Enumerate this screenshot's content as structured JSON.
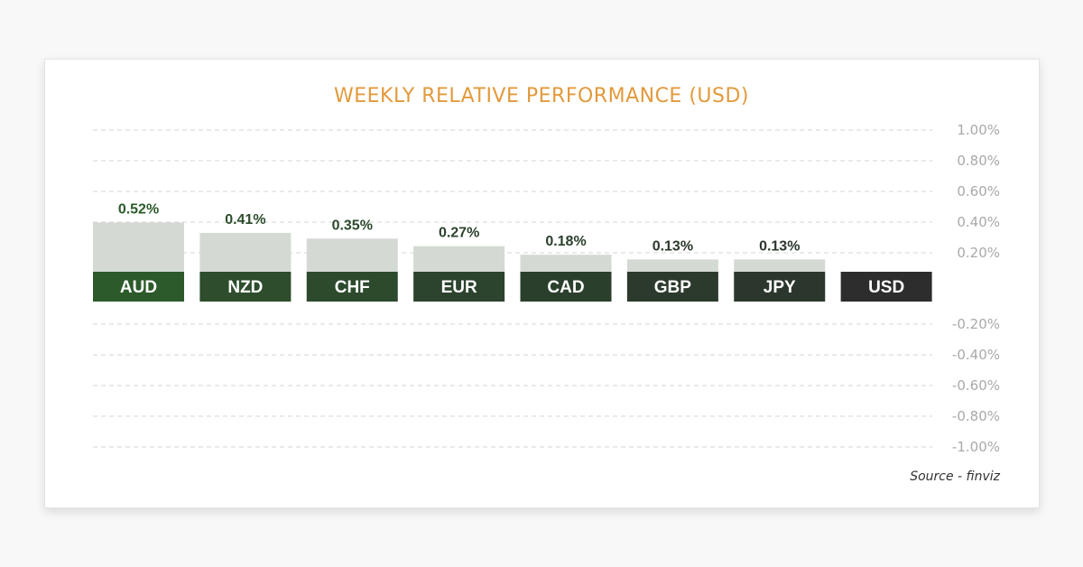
{
  "chart_data": {
    "type": "bar",
    "title": "WEEKLY RELATIVE PERFORMANCE (USD)",
    "categories": [
      "AUD",
      "NZD",
      "CHF",
      "EUR",
      "CAD",
      "GBP",
      "JPY",
      "USD"
    ],
    "values": [
      0.52,
      0.41,
      0.35,
      0.27,
      0.18,
      0.13,
      0.13,
      0.0
    ],
    "value_labels": [
      "0.52%",
      "0.41%",
      "0.35%",
      "0.27%",
      "0.18%",
      "0.13%",
      "0.13%",
      ""
    ],
    "ylim": [
      -1.0,
      1.0
    ],
    "yticks": [
      1.0,
      0.8,
      0.6,
      0.4,
      0.2,
      -0.2,
      -0.4,
      -0.6,
      -0.8,
      -1.0
    ],
    "ytick_labels": [
      "1.00%",
      "0.80%",
      "0.60%",
      "0.40%",
      "0.20%",
      "-0.20%",
      "-0.40%",
      "-0.60%",
      "-0.80%",
      "-1.00%"
    ],
    "grid": true,
    "source": "Source - finviz"
  },
  "colors": {
    "title": "#e29a3c",
    "bar_fill": "#d4dad3",
    "grid": "#d6d6d6",
    "label_bg": [
      "#2c5a2a",
      "#2d4d2c",
      "#2d4a2d",
      "#2c432d",
      "#2b3f2d",
      "#2b3a2c",
      "#2b372c",
      "#2d2d2d"
    ],
    "value_text": [
      "#2c5a2a",
      "#2d4d2c",
      "#2d4a2d",
      "#2c432d",
      "#2b3f2d",
      "#2b3a2c",
      "#2b372c",
      "#2d2d2d"
    ]
  }
}
